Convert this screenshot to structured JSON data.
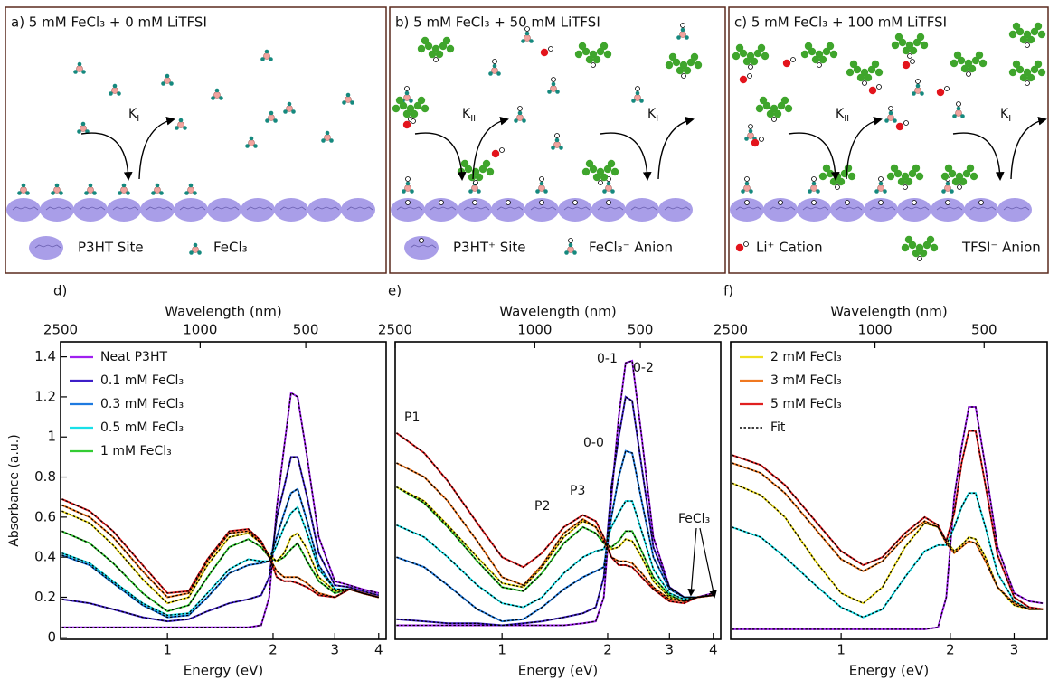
{
  "diagrams": [
    {
      "title": "a) 5 mM FeCl₃ + 0 mM LiTFSI",
      "rates": [
        "KI"
      ],
      "legend": [
        "P3HT Site",
        "FeCl₃"
      ]
    },
    {
      "title": "b) 5 mM FeCl₃ + 50 mM LiTFSI",
      "rates": [
        "KII",
        "KI"
      ],
      "legend": [
        "P3HT⁺ Site",
        "FeCl₃⁻ Anion"
      ]
    },
    {
      "title": "c) 5 mM FeCl₃ + 100 mM LiTFSI",
      "rates": [
        "KII",
        "KI"
      ],
      "legend": [
        "Li⁺ Cation",
        "TFSI⁻ Anion"
      ]
    }
  ],
  "chart_data": [
    {
      "type": "line",
      "panel_label": "d)",
      "x_label": "Energy (eV)",
      "x2_label": "Wavelength (nm)",
      "y_label": "Absorbance (a.u.)",
      "xscale": "log",
      "x2scale": "log",
      "xlim": [
        0.496,
        4.2
      ],
      "xticks": [
        1,
        2,
        3,
        4
      ],
      "x2lim": [
        2500,
        295
      ],
      "x2ticks": [
        2500,
        1000,
        500
      ],
      "ylim": [
        -0.01,
        1.475
      ],
      "yticks": [
        0,
        0.2,
        0.4,
        0.6,
        0.8,
        1,
        1.2,
        1.4
      ],
      "legend": "upper left",
      "x": [
        0.5,
        0.6,
        0.7,
        0.85,
        1.0,
        1.15,
        1.3,
        1.5,
        1.7,
        1.85,
        1.95,
        2.05,
        2.15,
        2.25,
        2.35,
        2.5,
        2.7,
        3.0,
        3.3,
        3.6,
        4.0
      ],
      "series": [
        {
          "name": "Neat P3HT",
          "color": "#a020f0",
          "values": [
            0.05,
            0.05,
            0.05,
            0.05,
            0.05,
            0.05,
            0.05,
            0.05,
            0.05,
            0.06,
            0.2,
            0.65,
            0.95,
            1.22,
            1.2,
            0.9,
            0.5,
            0.28,
            0.26,
            0.24,
            0.22
          ]
        },
        {
          "name": "0.1 mM FeCl₃",
          "color": "#3d1fc8",
          "values": [
            0.19,
            0.17,
            0.14,
            0.1,
            0.08,
            0.09,
            0.13,
            0.17,
            0.19,
            0.21,
            0.3,
            0.6,
            0.75,
            0.9,
            0.9,
            0.7,
            0.42,
            0.26,
            0.25,
            0.23,
            0.21
          ]
        },
        {
          "name": "0.3 mM FeCl₃",
          "color": "#1e7ae0",
          "values": [
            0.41,
            0.36,
            0.27,
            0.16,
            0.1,
            0.11,
            0.2,
            0.32,
            0.36,
            0.37,
            0.38,
            0.5,
            0.62,
            0.72,
            0.74,
            0.58,
            0.36,
            0.24,
            0.24,
            0.22,
            0.2
          ]
        },
        {
          "name": "0.5 mM FeCl₃",
          "color": "#18e0e8",
          "values": [
            0.42,
            0.37,
            0.28,
            0.17,
            0.11,
            0.12,
            0.22,
            0.34,
            0.39,
            0.38,
            0.38,
            0.46,
            0.55,
            0.62,
            0.65,
            0.52,
            0.34,
            0.24,
            0.24,
            0.22,
            0.2
          ]
        },
        {
          "name": "1 mM FeCl₃",
          "color": "#33cc33",
          "values": [
            0.53,
            0.47,
            0.37,
            0.22,
            0.13,
            0.16,
            0.3,
            0.45,
            0.49,
            0.45,
            0.4,
            0.38,
            0.4,
            0.44,
            0.47,
            0.38,
            0.28,
            0.22,
            0.24,
            0.22,
            0.2
          ]
        },
        {
          "color": "#f0e020",
          "values": [
            0.63,
            0.57,
            0.46,
            0.29,
            0.17,
            0.2,
            0.36,
            0.5,
            0.52,
            0.47,
            0.41,
            0.38,
            0.42,
            0.5,
            0.52,
            0.44,
            0.3,
            0.23,
            0.24,
            0.22,
            0.2
          ]
        },
        {
          "color": "#f07820",
          "values": [
            0.66,
            0.6,
            0.5,
            0.33,
            0.2,
            0.22,
            0.38,
            0.52,
            0.53,
            0.47,
            0.4,
            0.33,
            0.3,
            0.3,
            0.3,
            0.27,
            0.22,
            0.2,
            0.24,
            0.22,
            0.2
          ]
        },
        {
          "color": "#e02020",
          "values": [
            0.69,
            0.63,
            0.53,
            0.36,
            0.22,
            0.23,
            0.39,
            0.53,
            0.54,
            0.48,
            0.4,
            0.3,
            0.28,
            0.28,
            0.27,
            0.25,
            0.21,
            0.2,
            0.24,
            0.22,
            0.2
          ]
        }
      ]
    },
    {
      "type": "line",
      "panel_label": "e)",
      "x_label": "Energy (eV)",
      "x2_label": "Wavelength (nm)",
      "xscale": "log",
      "x2scale": "log",
      "xlim": [
        0.496,
        4.2
      ],
      "xticks": [
        1,
        2,
        3,
        4
      ],
      "x2lim": [
        2500,
        295
      ],
      "x2ticks": [
        2500,
        1000,
        500
      ],
      "ylim": [
        -0.01,
        1.475
      ],
      "annotations": [
        "P1",
        "P2",
        "P3",
        "0-0",
        "0-1",
        "0-2",
        "FeCl₃"
      ],
      "x": [
        0.5,
        0.6,
        0.7,
        0.85,
        1.0,
        1.15,
        1.3,
        1.5,
        1.7,
        1.85,
        1.95,
        2.05,
        2.15,
        2.25,
        2.35,
        2.5,
        2.7,
        3.0,
        3.3,
        3.6,
        4.0
      ],
      "series": [
        {
          "color": "#a020f0",
          "values": [
            0.06,
            0.06,
            0.06,
            0.06,
            0.06,
            0.06,
            0.06,
            0.06,
            0.07,
            0.08,
            0.2,
            0.7,
            1.1,
            1.37,
            1.38,
            1.0,
            0.5,
            0.25,
            0.2,
            0.2,
            0.22
          ]
        },
        {
          "color": "#3d1fc8",
          "values": [
            0.09,
            0.08,
            0.07,
            0.07,
            0.06,
            0.07,
            0.08,
            0.1,
            0.12,
            0.15,
            0.3,
            0.75,
            1.0,
            1.2,
            1.18,
            0.85,
            0.45,
            0.25,
            0.2,
            0.2,
            0.21
          ]
        },
        {
          "color": "#1e7ae0",
          "values": [
            0.4,
            0.35,
            0.26,
            0.14,
            0.08,
            0.09,
            0.15,
            0.24,
            0.3,
            0.33,
            0.35,
            0.6,
            0.8,
            0.93,
            0.92,
            0.68,
            0.4,
            0.24,
            0.2,
            0.2,
            0.21
          ]
        },
        {
          "color": "#18e0e8",
          "values": [
            0.56,
            0.5,
            0.4,
            0.26,
            0.17,
            0.15,
            0.2,
            0.32,
            0.4,
            0.43,
            0.44,
            0.55,
            0.62,
            0.68,
            0.68,
            0.53,
            0.34,
            0.22,
            0.19,
            0.2,
            0.21
          ]
        },
        {
          "color": "#33cc33",
          "values": [
            0.75,
            0.67,
            0.55,
            0.38,
            0.25,
            0.23,
            0.32,
            0.47,
            0.55,
            0.52,
            0.47,
            0.45,
            0.48,
            0.53,
            0.53,
            0.43,
            0.3,
            0.21,
            0.18,
            0.2,
            0.21
          ]
        },
        {
          "color": "#f0e020",
          "values": [
            0.75,
            0.68,
            0.56,
            0.4,
            0.27,
            0.25,
            0.35,
            0.5,
            0.58,
            0.55,
            0.48,
            0.44,
            0.45,
            0.49,
            0.48,
            0.4,
            0.28,
            0.2,
            0.18,
            0.2,
            0.21
          ]
        },
        {
          "color": "#f07820",
          "values": [
            0.87,
            0.8,
            0.68,
            0.48,
            0.3,
            0.26,
            0.36,
            0.52,
            0.59,
            0.55,
            0.48,
            0.4,
            0.38,
            0.38,
            0.37,
            0.32,
            0.25,
            0.19,
            0.18,
            0.2,
            0.21
          ]
        },
        {
          "color": "#e02020",
          "values": [
            1.02,
            0.92,
            0.78,
            0.57,
            0.4,
            0.35,
            0.42,
            0.55,
            0.61,
            0.58,
            0.5,
            0.4,
            0.36,
            0.36,
            0.35,
            0.3,
            0.24,
            0.18,
            0.17,
            0.2,
            0.21
          ]
        }
      ]
    },
    {
      "type": "line",
      "panel_label": "f)",
      "x_label": "Energy (eV)",
      "x2_label": "Wavelength (nm)",
      "xscale": "log",
      "x2scale": "log",
      "xlim": [
        0.496,
        3.7
      ],
      "xticks": [
        1,
        2,
        3
      ],
      "x2lim": [
        2500,
        335
      ],
      "x2ticks": [
        2500,
        1000,
        500
      ],
      "ylim": [
        -0.01,
        1.475
      ],
      "legend": "upper left",
      "fit_label": "Fit",
      "x": [
        0.5,
        0.6,
        0.7,
        0.85,
        1.0,
        1.15,
        1.3,
        1.5,
        1.7,
        1.85,
        1.95,
        2.05,
        2.15,
        2.25,
        2.35,
        2.5,
        2.7,
        3.0,
        3.3,
        3.6
      ],
      "series": [
        {
          "color": "#a020f0",
          "values": [
            0.04,
            0.04,
            0.04,
            0.04,
            0.04,
            0.04,
            0.04,
            0.04,
            0.04,
            0.05,
            0.2,
            0.7,
            0.95,
            1.15,
            1.15,
            0.85,
            0.45,
            0.22,
            0.18,
            0.17
          ]
        },
        {
          "color": "#18e0e8",
          "values": [
            0.55,
            0.5,
            0.4,
            0.26,
            0.15,
            0.1,
            0.14,
            0.3,
            0.43,
            0.46,
            0.46,
            0.55,
            0.65,
            0.72,
            0.72,
            0.55,
            0.32,
            0.18,
            0.14,
            0.14
          ]
        },
        {
          "name": "2 mM FeCl₃",
          "color": "#f0e020",
          "values": [
            0.77,
            0.71,
            0.6,
            0.38,
            0.22,
            0.17,
            0.25,
            0.45,
            0.57,
            0.55,
            0.48,
            0.43,
            0.46,
            0.5,
            0.49,
            0.4,
            0.25,
            0.16,
            0.14,
            0.14
          ]
        },
        {
          "name": "3 mM FeCl₃",
          "color": "#f07820",
          "values": [
            0.87,
            0.82,
            0.72,
            0.54,
            0.39,
            0.33,
            0.38,
            0.5,
            0.58,
            0.55,
            0.47,
            0.42,
            0.45,
            0.48,
            0.47,
            0.38,
            0.25,
            0.17,
            0.14,
            0.14
          ]
        },
        {
          "name": "5 mM FeCl₃",
          "color": "#e02020",
          "values": [
            0.91,
            0.86,
            0.76,
            0.58,
            0.43,
            0.36,
            0.4,
            0.52,
            0.6,
            0.56,
            0.48,
            0.62,
            0.87,
            1.03,
            1.03,
            0.76,
            0.41,
            0.2,
            0.15,
            0.14
          ]
        }
      ]
    }
  ]
}
